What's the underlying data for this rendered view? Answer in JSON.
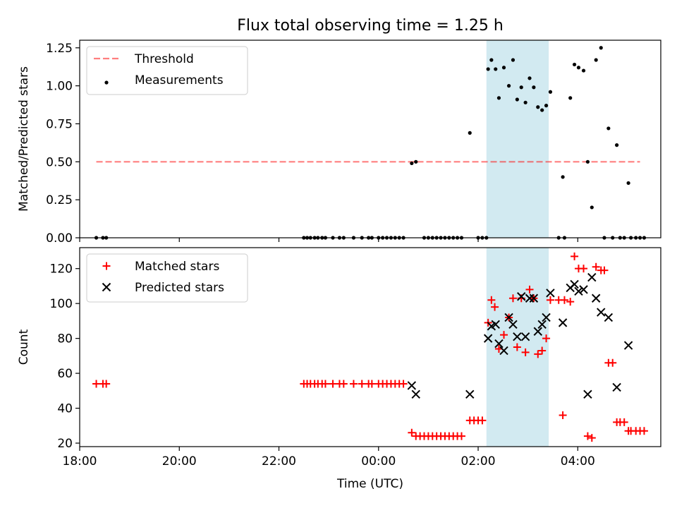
{
  "chart_data": [
    {
      "type": "scatter",
      "title": "Flux total observing time = 1.25 h",
      "xlabel": "",
      "ylabel": "Matched/Predicted stars",
      "xlim": [
        "18:00",
        "05:40"
      ],
      "ylim": [
        0,
        1.3
      ],
      "yticks": [
        0,
        0.25,
        0.5,
        0.75,
        1.0,
        1.25
      ],
      "ytick_labels": [
        "0.00",
        "0.25",
        "0.50",
        "0.75",
        "1.00",
        "1.25"
      ],
      "xticks": [
        "18:00",
        "20:00",
        "22:00",
        "00:00",
        "02:00",
        "04:00"
      ],
      "x_tick_labels_visible": false,
      "shaded_interval": {
        "start": "02:10",
        "end": "03:25",
        "color": "#add8e6"
      },
      "legend_position": "upper left",
      "threshold": {
        "name": "Threshold",
        "value": 0.5,
        "x_start": "18:20",
        "x_end": "05:15",
        "color": "#ff0000",
        "alpha": 0.5
      },
      "series": [
        {
          "name": "Measurements",
          "marker": "dot",
          "color": "#000000",
          "points": [
            [
              "18:20",
              0
            ],
            [
              "18:28",
              0
            ],
            [
              "18:32",
              0
            ],
            [
              "22:30",
              0
            ],
            [
              "22:34",
              0
            ],
            [
              "22:38",
              0
            ],
            [
              "22:43",
              0
            ],
            [
              "22:47",
              0
            ],
            [
              "22:52",
              0
            ],
            [
              "22:56",
              0
            ],
            [
              "23:05",
              0
            ],
            [
              "23:13",
              0
            ],
            [
              "23:18",
              0
            ],
            [
              "23:30",
              0
            ],
            [
              "23:40",
              0
            ],
            [
              "23:48",
              0
            ],
            [
              "23:52",
              0
            ],
            [
              "00:00",
              0
            ],
            [
              "00:05",
              0
            ],
            [
              "00:10",
              0
            ],
            [
              "00:15",
              0
            ],
            [
              "00:20",
              0
            ],
            [
              "00:25",
              0
            ],
            [
              "00:30",
              0
            ],
            [
              "00:40",
              0.49
            ],
            [
              "00:45",
              0.5
            ],
            [
              "00:55",
              0
            ],
            [
              "01:00",
              0
            ],
            [
              "01:05",
              0
            ],
            [
              "01:10",
              0
            ],
            [
              "01:15",
              0
            ],
            [
              "01:20",
              0
            ],
            [
              "01:25",
              0
            ],
            [
              "01:30",
              0
            ],
            [
              "01:35",
              0
            ],
            [
              "01:40",
              0
            ],
            [
              "01:50",
              0.69
            ],
            [
              "02:00",
              0
            ],
            [
              "02:05",
              0
            ],
            [
              "02:10",
              0
            ],
            [
              "02:12",
              1.11
            ],
            [
              "02:16",
              1.17
            ],
            [
              "02:21",
              1.11
            ],
            [
              "02:25",
              0.92
            ],
            [
              "02:31",
              1.12
            ],
            [
              "02:37",
              1.0
            ],
            [
              "02:42",
              1.17
            ],
            [
              "02:47",
              0.91
            ],
            [
              "02:52",
              0.99
            ],
            [
              "02:57",
              0.89
            ],
            [
              "03:02",
              1.05
            ],
            [
              "03:07",
              0.99
            ],
            [
              "03:12",
              0.86
            ],
            [
              "03:17",
              0.84
            ],
            [
              "03:22",
              0.87
            ],
            [
              "03:27",
              0.96
            ],
            [
              "03:37",
              0
            ],
            [
              "03:44",
              0
            ],
            [
              "03:42",
              0.4
            ],
            [
              "03:51",
              0.92
            ],
            [
              "03:56",
              1.14
            ],
            [
              "04:01",
              1.12
            ],
            [
              "04:07",
              1.1
            ],
            [
              "04:12",
              0.5
            ],
            [
              "04:17",
              0.2
            ],
            [
              "04:22",
              1.17
            ],
            [
              "04:28",
              1.25
            ],
            [
              "04:32",
              0
            ],
            [
              "04:37",
              0.72
            ],
            [
              "04:42",
              0
            ],
            [
              "04:47",
              0.61
            ],
            [
              "04:51",
              0
            ],
            [
              "04:56",
              0
            ],
            [
              "05:01",
              0.36
            ],
            [
              "05:04",
              0
            ],
            [
              "05:10",
              0
            ],
            [
              "05:15",
              0
            ],
            [
              "05:20",
              0
            ]
          ]
        }
      ]
    },
    {
      "type": "scatter",
      "title": "",
      "xlabel": "Time (UTC)",
      "ylabel": "Count",
      "xlim": [
        "18:00",
        "05:40"
      ],
      "ylim": [
        18,
        132
      ],
      "yticks": [
        20,
        40,
        60,
        80,
        100,
        120
      ],
      "ytick_labels": [
        "20",
        "40",
        "60",
        "80",
        "100",
        "120"
      ],
      "xticks": [
        "18:00",
        "20:00",
        "22:00",
        "00:00",
        "02:00",
        "04:00"
      ],
      "xtick_labels": [
        "18:00",
        "20:00",
        "22:00",
        "00:00",
        "02:00",
        "04:00"
      ],
      "shaded_interval": {
        "start": "02:10",
        "end": "03:25",
        "color": "#add8e6"
      },
      "legend_position": "upper left",
      "series": [
        {
          "name": "Matched stars",
          "marker": "plus",
          "color": "#ff0000",
          "points": [
            [
              "18:20",
              54
            ],
            [
              "18:28",
              54
            ],
            [
              "18:32",
              54
            ],
            [
              "22:30",
              54
            ],
            [
              "22:34",
              54
            ],
            [
              "22:38",
              54
            ],
            [
              "22:43",
              54
            ],
            [
              "22:47",
              54
            ],
            [
              "22:52",
              54
            ],
            [
              "22:56",
              54
            ],
            [
              "23:05",
              54
            ],
            [
              "23:13",
              54
            ],
            [
              "23:18",
              54
            ],
            [
              "23:30",
              54
            ],
            [
              "23:40",
              54
            ],
            [
              "23:48",
              54
            ],
            [
              "23:52",
              54
            ],
            [
              "00:00",
              54
            ],
            [
              "00:05",
              54
            ],
            [
              "00:10",
              54
            ],
            [
              "00:15",
              54
            ],
            [
              "00:20",
              54
            ],
            [
              "00:25",
              54
            ],
            [
              "00:30",
              54
            ],
            [
              "00:40",
              26
            ],
            [
              "00:45",
              24
            ],
            [
              "00:50",
              24
            ],
            [
              "00:55",
              24
            ],
            [
              "01:00",
              24
            ],
            [
              "01:05",
              24
            ],
            [
              "01:10",
              24
            ],
            [
              "01:15",
              24
            ],
            [
              "01:20",
              24
            ],
            [
              "01:25",
              24
            ],
            [
              "01:30",
              24
            ],
            [
              "01:35",
              24
            ],
            [
              "01:40",
              24
            ],
            [
              "01:50",
              33
            ],
            [
              "01:55",
              33
            ],
            [
              "02:00",
              33
            ],
            [
              "02:05",
              33
            ],
            [
              "02:12",
              89
            ],
            [
              "02:16",
              102
            ],
            [
              "02:20",
              98
            ],
            [
              "02:25",
              74
            ],
            [
              "02:31",
              82
            ],
            [
              "02:37",
              92
            ],
            [
              "02:42",
              103
            ],
            [
              "02:47",
              75
            ],
            [
              "02:52",
              103
            ],
            [
              "02:57",
              72
            ],
            [
              "03:02",
              108
            ],
            [
              "03:07",
              103
            ],
            [
              "03:12",
              71
            ],
            [
              "03:17",
              73
            ],
            [
              "03:22",
              80
            ],
            [
              "03:27",
              102
            ],
            [
              "03:37",
              102
            ],
            [
              "03:44",
              102
            ],
            [
              "03:42",
              36
            ],
            [
              "03:51",
              101
            ],
            [
              "03:56",
              127
            ],
            [
              "04:01",
              120
            ],
            [
              "04:07",
              120
            ],
            [
              "04:12",
              24
            ],
            [
              "04:17",
              23
            ],
            [
              "04:22",
              121
            ],
            [
              "04:28",
              119
            ],
            [
              "04:32",
              119
            ],
            [
              "04:37",
              66
            ],
            [
              "04:42",
              66
            ],
            [
              "04:47",
              32
            ],
            [
              "04:51",
              32
            ],
            [
              "04:56",
              32
            ],
            [
              "05:01",
              27
            ],
            [
              "05:04",
              27
            ],
            [
              "05:10",
              27
            ],
            [
              "05:15",
              27
            ],
            [
              "05:20",
              27
            ]
          ]
        },
        {
          "name": "Predicted stars",
          "marker": "x",
          "color": "#000000",
          "points": [
            [
              "00:40",
              53
            ],
            [
              "00:45",
              48
            ],
            [
              "01:50",
              48
            ],
            [
              "02:12",
              80
            ],
            [
              "02:16",
              87
            ],
            [
              "02:21",
              88
            ],
            [
              "02:25",
              77
            ],
            [
              "02:31",
              73
            ],
            [
              "02:37",
              92
            ],
            [
              "02:42",
              88
            ],
            [
              "02:47",
              81
            ],
            [
              "02:52",
              104
            ],
            [
              "02:57",
              81
            ],
            [
              "03:02",
              103
            ],
            [
              "03:07",
              103
            ],
            [
              "03:12",
              84
            ],
            [
              "03:17",
              88
            ],
            [
              "03:22",
              92
            ],
            [
              "03:27",
              106
            ],
            [
              "03:42",
              89
            ],
            [
              "03:51",
              109
            ],
            [
              "03:56",
              111
            ],
            [
              "04:01",
              107
            ],
            [
              "04:07",
              108
            ],
            [
              "04:12",
              48
            ],
            [
              "04:17",
              115
            ],
            [
              "04:22",
              103
            ],
            [
              "04:28",
              95
            ],
            [
              "04:37",
              92
            ],
            [
              "04:47",
              52
            ],
            [
              "05:01",
              76
            ]
          ]
        }
      ]
    }
  ]
}
